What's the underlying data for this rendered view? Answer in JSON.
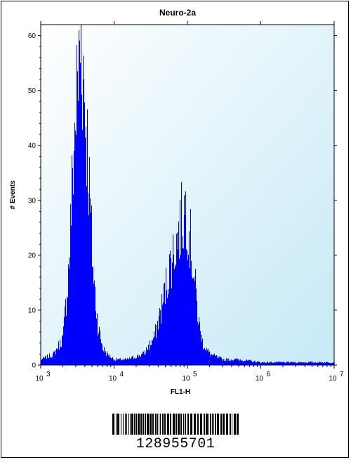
{
  "chart_data": {
    "type": "area",
    "title": "Neuro-2a",
    "xlabel": "FL1-H",
    "ylabel": "# Events",
    "x_scale": "log",
    "xlim": [
      1000,
      10000000
    ],
    "ylim": [
      0,
      62
    ],
    "x_tick_values": [
      1000,
      10000,
      100000,
      1000000,
      10000000
    ],
    "x_tick_labels": [
      "10",
      "10",
      "10",
      "10",
      "10"
    ],
    "x_tick_exponents": [
      "3",
      "4",
      "5",
      "6",
      "7"
    ],
    "y_ticks": [
      0,
      10,
      20,
      30,
      40,
      50,
      60
    ],
    "grid": false,
    "fill_color": "#0000ff",
    "background_gradient": [
      "#ffffff",
      "#c6e9f6"
    ],
    "series": [
      {
        "x": [
          1000,
          1500,
          2000,
          2400,
          2700,
          3000,
          3200,
          3500,
          3700,
          4000,
          4300,
          4700,
          5200,
          6000,
          7000,
          8000,
          10000,
          15000,
          25000,
          35000,
          45000,
          55000,
          65000,
          75000,
          85000,
          95000,
          110000,
          125000,
          140000,
          160000,
          200000,
          300000,
          500000,
          1000000,
          3000000,
          10000000
        ],
        "values": [
          1,
          2,
          5,
          18,
          35,
          47,
          52,
          60,
          55,
          47,
          40,
          28,
          16,
          7,
          3,
          2,
          1,
          1,
          2,
          5,
          11,
          17,
          21,
          24,
          27,
          29,
          22,
          15,
          8,
          4,
          2,
          1,
          1,
          0.5,
          0.5,
          0.5
        ]
      }
    ]
  },
  "barcode": {
    "number": "128955701"
  }
}
